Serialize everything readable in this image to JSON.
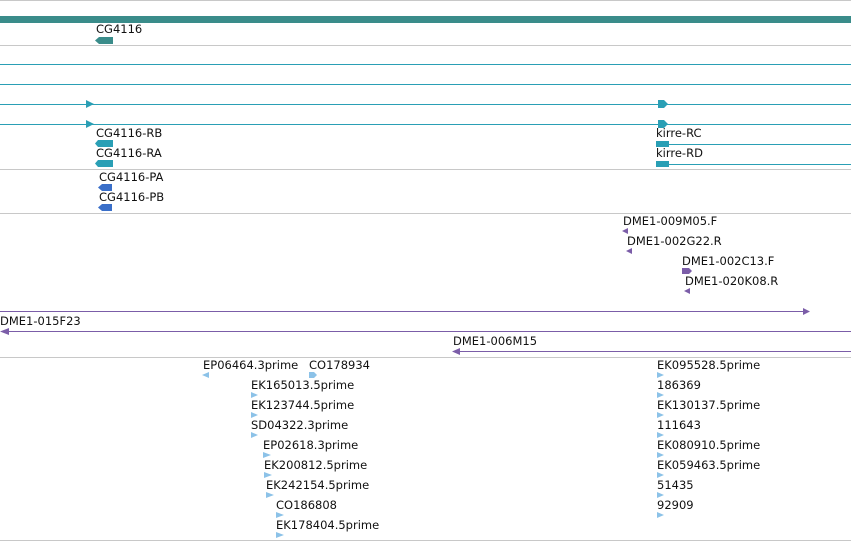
{
  "colors": {
    "gene": "#3a8c8a",
    "transcript": "#2a9fb5",
    "protein": "#3a6fc9",
    "clone": "#7b5da8",
    "est": "#8cc2e8",
    "divider": "#c8c8c8"
  },
  "gene_track": {
    "label": "CG4116"
  },
  "transcript_track": {
    "labels": [
      "CG4116-RB",
      "CG4116-RA",
      "kirre-RC",
      "kirre-RD"
    ]
  },
  "protein_track": {
    "labels": [
      "CG4116-PA",
      "CG4116-PB"
    ]
  },
  "clone_track": {
    "labels": [
      "DME1-009M05.F",
      "DME1-002G22.R",
      "DME1-002C13.F",
      "DME1-020K08.R",
      "DME1-015F23",
      "DME1-006M15"
    ]
  },
  "est_track": {
    "labels": [
      "EP06464.3prime",
      "CO178934",
      "EK165013.5prime",
      "EK123744.5prime",
      "SD04322.3prime",
      "EP02618.3prime",
      "EK200812.5prime",
      "EK242154.5prime",
      "CO186808",
      "EK178404.5prime",
      "EK095528.5prime",
      "186369",
      "EK130137.5prime",
      "111643",
      "EK080910.5prime",
      "EK059463.5prime",
      "51435",
      "92909"
    ]
  }
}
